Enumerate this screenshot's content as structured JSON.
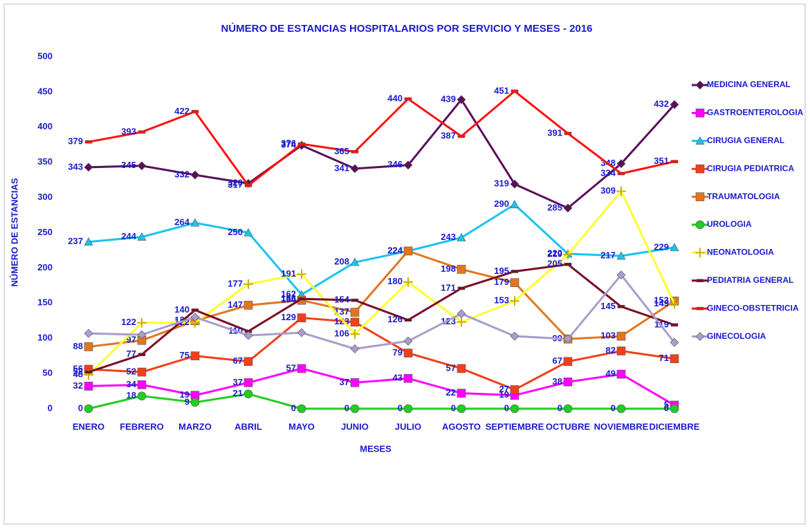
{
  "chart_data": {
    "type": "line",
    "title": "NÚMERO DE ESTANCIAS HOSPITALARIOS POR SERVICIO Y MESES - 2016",
    "x_label": "MESES",
    "y_label": "NÚMERO DE ESTANCIAS",
    "categories": [
      "ENERO",
      "FEBRERO",
      "MARZO",
      "ABRIL",
      "MAYO",
      "JUNIO",
      "JULIO",
      "AGOSTO",
      "SEPTIEMBRE",
      "OCTUBRE",
      "NOVIEMBRE",
      "DICIEMBRE"
    ],
    "ylim": [
      0,
      500
    ],
    "yticks": [
      0,
      50,
      100,
      150,
      200,
      250,
      300,
      350,
      400,
      450,
      500
    ],
    "grid": false,
    "legend": "right",
    "series": [
      {
        "name": "MEDICINA GENERAL",
        "color": "#5a0f5a",
        "marker": "diamond",
        "values": [
          343,
          345,
          332,
          320,
          374,
          341,
          346,
          439,
          319,
          285,
          348,
          432
        ]
      },
      {
        "name": "GASTROENTEROLOGIA",
        "color": "#ff00ff",
        "marker": "square",
        "values": [
          32,
          34,
          19,
          37,
          57,
          37,
          43,
          22,
          19,
          38,
          49,
          5
        ]
      },
      {
        "name": "CIRUGIA GENERAL",
        "color": "#19c3f0",
        "marker": "triangle",
        "values": [
          237,
          244,
          264,
          250,
          162,
          208,
          224,
          243,
          290,
          220,
          217,
          229
        ]
      },
      {
        "name": "CIRUGIA PEDIATRICA",
        "color": "#f0401a",
        "marker": "square",
        "values": [
          56,
          52,
          75,
          67,
          129,
          123,
          79,
          57,
          27,
          67,
          82,
          71
        ]
      },
      {
        "name": "TRAUMATOLOGIA",
        "color": "#e2761e",
        "marker": "square",
        "values": [
          88,
          97,
          125,
          147,
          154,
          137,
          224,
          198,
          179,
          99,
          103,
          153
        ]
      },
      {
        "name": "UROLOGIA",
        "color": "#22cc22",
        "marker": "circle",
        "values": [
          0,
          18,
          9,
          21,
          0,
          0,
          0,
          0,
          0,
          0,
          0,
          0
        ]
      },
      {
        "name": "NEONATOLOGIA",
        "color": "#ffff30",
        "marker": "plus",
        "values": [
          48,
          122,
          122,
          177,
          191,
          106,
          180,
          123,
          153,
          219,
          309,
          149
        ]
      },
      {
        "name": "PEDIATRIA GENERAL",
        "color": "#7a0a24",
        "marker": "dash",
        "values": [
          52,
          77,
          140,
          110,
          156,
          154,
          126,
          171,
          195,
          205,
          145,
          119
        ]
      },
      {
        "name": "GINECO-OBSTETRICIA",
        "color": "#ff1010",
        "marker": "dash",
        "values": [
          379,
          393,
          422,
          317,
          376,
          365,
          440,
          387,
          451,
          391,
          334,
          351
        ]
      },
      {
        "name": "GINECOLOGIA",
        "color": "#aa9ccc",
        "marker": "diamond",
        "labels": false,
        "values": [
          107,
          105,
          130,
          104,
          108,
          85,
          96,
          135,
          103,
          99,
          190,
          94
        ]
      }
    ]
  }
}
